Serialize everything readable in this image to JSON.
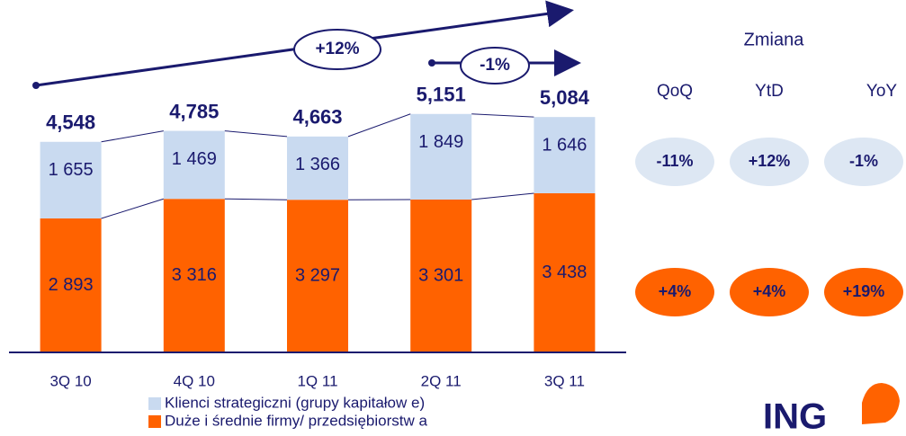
{
  "chart_data": {
    "type": "stacked-bar",
    "categories": [
      "3Q 10",
      "4Q 10",
      "1Q 11",
      "2Q 11",
      "3Q 11"
    ],
    "series": [
      {
        "name": "Duże i średnie firmy/ przedsiębiorstw a",
        "color": "#ff6200",
        "values": [
          2893,
          3316,
          3297,
          3301,
          3438
        ],
        "value_labels": [
          "2 893",
          "3 316",
          "3 297",
          "3 301",
          "3 438"
        ]
      },
      {
        "name": "Klienci strategiczni (grupy kapitałow e)",
        "color": "#c9daf0",
        "values": [
          1655,
          1469,
          1366,
          1849,
          1646
        ],
        "value_labels": [
          "1 655",
          "1 469",
          "1 366",
          "1 849",
          "1 646"
        ]
      }
    ],
    "totals": [
      4548,
      4785,
      4663,
      5151,
      5084
    ],
    "total_labels": [
      "4,548",
      "4,785",
      "4,663",
      "5,151",
      "5,084"
    ],
    "ylim": [
      0,
      6000
    ],
    "annotations": [
      "+12%",
      "-1%"
    ],
    "changes": {
      "title": "Zmiana",
      "columns": [
        "QoQ",
        "YtD",
        "YoY"
      ],
      "rows": [
        [
          "-11%",
          "+12%",
          "-1%"
        ],
        [
          "+4%",
          "+4%",
          "+19%"
        ]
      ]
    },
    "logo": "ING"
  }
}
